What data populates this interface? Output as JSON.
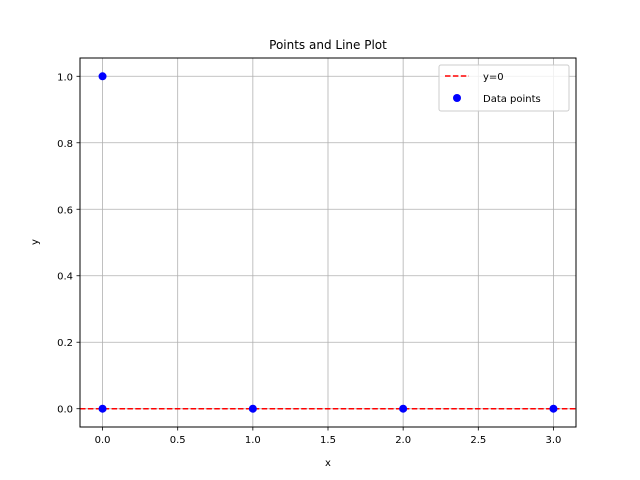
{
  "chart_data": {
    "type": "scatter",
    "title": "Points and Line Plot",
    "xlabel": "x",
    "ylabel": "y",
    "xlim": [
      -0.15,
      3.15
    ],
    "ylim": [
      -0.055,
      1.055
    ],
    "xticks": [
      0.0,
      0.5,
      1.0,
      1.5,
      2.0,
      2.5,
      3.0
    ],
    "xtick_labels": [
      "0.0",
      "0.5",
      "1.0",
      "1.5",
      "2.0",
      "2.5",
      "3.0"
    ],
    "yticks": [
      0.0,
      0.2,
      0.4,
      0.6,
      0.8,
      1.0
    ],
    "ytick_labels": [
      "0.0",
      "0.2",
      "0.4",
      "0.6",
      "0.8",
      "1.0"
    ],
    "grid": true,
    "legend_position": "top-right",
    "series": [
      {
        "name": "y=0",
        "kind": "line",
        "style": "dashed",
        "color": "#ff0000",
        "x": [
          -0.15,
          3.15
        ],
        "y": [
          0,
          0
        ]
      },
      {
        "name": "Data points",
        "kind": "scatter",
        "color": "#0000ff",
        "points": [
          {
            "x": 0,
            "y": 1
          },
          {
            "x": 0,
            "y": 0
          },
          {
            "x": 1,
            "y": 0
          },
          {
            "x": 2,
            "y": 0
          },
          {
            "x": 3,
            "y": 0
          }
        ]
      }
    ]
  }
}
